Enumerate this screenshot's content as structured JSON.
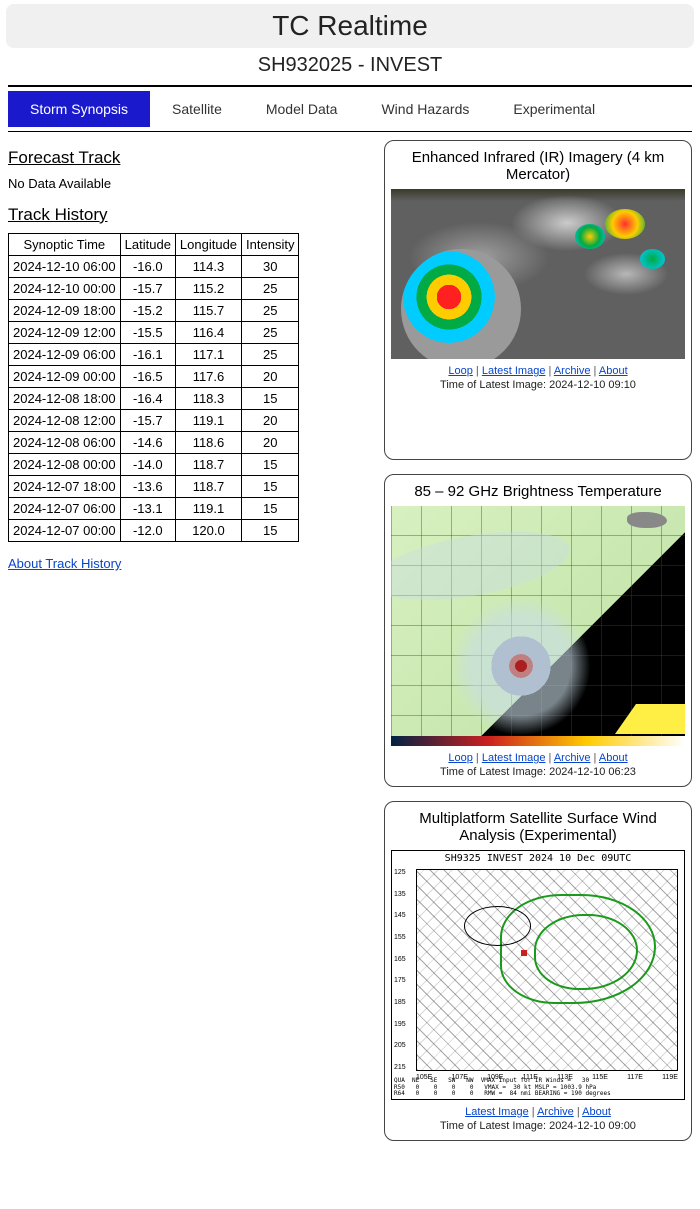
{
  "header": {
    "title": "TC Realtime",
    "subtitle": "SH932025 - INVEST"
  },
  "tabs": [
    {
      "label": "Storm Synopsis",
      "active": true
    },
    {
      "label": "Satellite",
      "active": false
    },
    {
      "label": "Model Data",
      "active": false
    },
    {
      "label": "Wind Hazards",
      "active": false
    },
    {
      "label": "Experimental",
      "active": false
    }
  ],
  "forecast": {
    "heading": "Forecast Track",
    "no_data": "No Data Available"
  },
  "track": {
    "heading": "Track History",
    "columns": [
      "Synoptic Time",
      "Latitude",
      "Longitude",
      "Intensity"
    ],
    "rows": [
      [
        "2024-12-10 06:00",
        "-16.0",
        "114.3",
        "30"
      ],
      [
        "2024-12-10 00:00",
        "-15.7",
        "115.2",
        "25"
      ],
      [
        "2024-12-09 18:00",
        "-15.2",
        "115.7",
        "25"
      ],
      [
        "2024-12-09 12:00",
        "-15.5",
        "116.4",
        "25"
      ],
      [
        "2024-12-09 06:00",
        "-16.1",
        "117.1",
        "25"
      ],
      [
        "2024-12-09 00:00",
        "-16.5",
        "117.6",
        "20"
      ],
      [
        "2024-12-08 18:00",
        "-16.4",
        "118.3",
        "15"
      ],
      [
        "2024-12-08 12:00",
        "-15.7",
        "119.1",
        "20"
      ],
      [
        "2024-12-08 06:00",
        "-14.6",
        "118.6",
        "20"
      ],
      [
        "2024-12-08 00:00",
        "-14.0",
        "118.7",
        "15"
      ],
      [
        "2024-12-07 18:00",
        "-13.6",
        "118.7",
        "15"
      ],
      [
        "2024-12-07 06:00",
        "-13.1",
        "119.1",
        "15"
      ],
      [
        "2024-12-07 00:00",
        "-12.0",
        "120.0",
        "15"
      ]
    ],
    "about_link": "About Track History"
  },
  "panels": {
    "ir": {
      "title": "Enhanced Infrared (IR) Imagery (4 km Mercator)",
      "links": [
        "Loop",
        "Latest Image",
        "Archive",
        "About"
      ],
      "time_label": "Time of Latest Image: 2024-12-10 09:10",
      "colors": {
        "bg": "#606060",
        "red": "#ff2020",
        "yellow": "#ffcc00",
        "green": "#00aa44",
        "cyan": "#00ccff",
        "cloud": "#d8d8d8"
      }
    },
    "ghz": {
      "title": "85 – 92 GHz Brightness Temperature",
      "links": [
        "Loop",
        "Latest Image",
        "Archive",
        "About"
      ],
      "time_label": "Time of Latest Image: 2024-12-10 06:23",
      "colors": {
        "bg_light": "#d8f0c0",
        "bg_dark": "#000000",
        "grid": "#006432",
        "core": "#aa2020",
        "cloud": "#b0c0d0",
        "yellow": "#ffee44",
        "land": "#888888"
      }
    },
    "wind": {
      "title": "Multiplatform Satellite Surface Wind Analysis (Experimental)",
      "plot_title": "SH9325   INVEST   2024 10 Dec 09UTC",
      "links": [
        "Latest Image",
        "Archive",
        "About"
      ],
      "time_label": "Time of Latest Image: 2024-12-10 09:00",
      "y_ticks": [
        "125",
        "135",
        "145",
        "155",
        "165",
        "175",
        "185",
        "195",
        "205",
        "215"
      ],
      "x_ticks": [
        "105E",
        "107E",
        "109E",
        "111E",
        "113E",
        "115E",
        "117E",
        "119E"
      ],
      "footer_lines": "QUA  NE   SE   SW   NW  VMAX Input for IR Winds =   30\nR50   0    0    0    0   VMAX =  30 kt MSLP = 1003.9 hPa\nR64   0    0    0    0   RMW =  84 nmi BEARING = 190 degrees",
      "colors": {
        "contour": "#1a9a1a",
        "barb": "#000000",
        "center": "#cc2020"
      }
    }
  },
  "sep": " | "
}
